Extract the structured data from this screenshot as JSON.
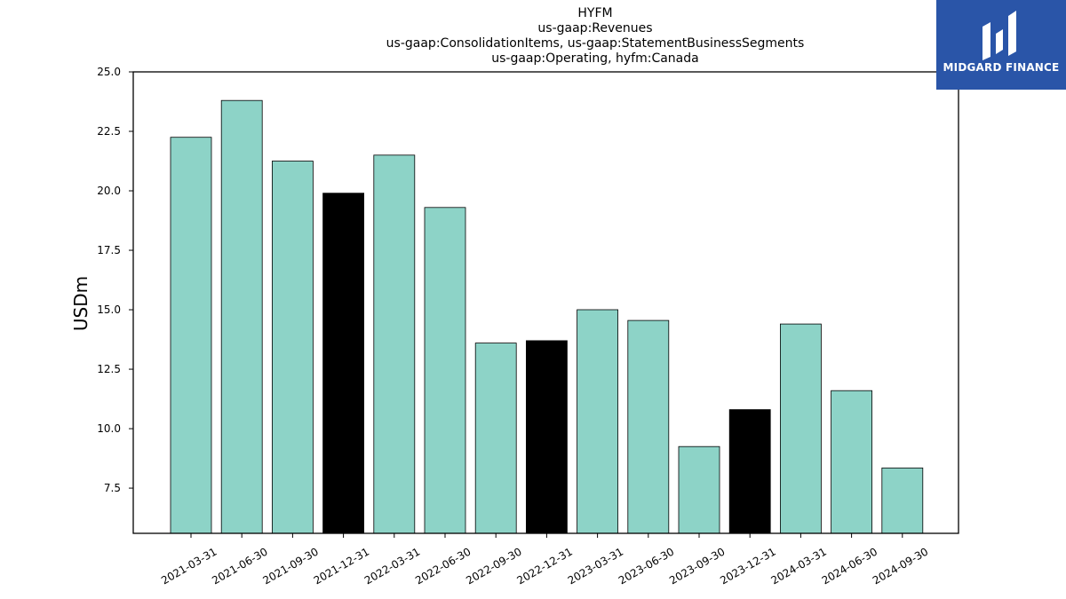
{
  "title": {
    "line1": "HYFM",
    "line2": "us-gaap:Revenues",
    "line3": "us-gaap:ConsolidationItems, us-gaap:StatementBusinessSegments",
    "line4": "us-gaap:Operating, hyfm:Canada"
  },
  "logo": {
    "text": "MIDGARD FINANCE",
    "icon": "midgard-logo-icon"
  },
  "colors": {
    "bar_default": "#8dd3c7",
    "bar_highlight": "#000000",
    "logo_bg": "#2a55a8"
  },
  "chart_data": {
    "type": "bar",
    "title": "HYFM\nus-gaap:Revenues\nus-gaap:ConsolidationItems, us-gaap:StatementBusinessSegments\nus-gaap:Operating, hyfm:Canada",
    "xlabel": "",
    "ylabel": "USDm",
    "ylim": [
      5.6,
      25.0
    ],
    "yticks": [
      "7.5",
      "10.0",
      "12.5",
      "15.0",
      "17.5",
      "20.0",
      "22.5",
      "25.0"
    ],
    "grid": false,
    "categories": [
      "2021-03-31",
      "2021-06-30",
      "2021-09-30",
      "2021-12-31",
      "2022-03-31",
      "2022-06-30",
      "2022-09-30",
      "2022-12-31",
      "2023-03-31",
      "2023-06-30",
      "2023-09-30",
      "2023-12-31",
      "2024-03-31",
      "2024-06-30",
      "2024-09-30"
    ],
    "values": [
      22.25,
      23.8,
      21.25,
      19.9,
      21.5,
      19.3,
      13.6,
      13.7,
      15.0,
      14.55,
      9.25,
      10.8,
      14.4,
      11.6,
      8.35
    ],
    "highlight": [
      false,
      false,
      false,
      true,
      false,
      false,
      false,
      true,
      false,
      false,
      false,
      true,
      false,
      false,
      false
    ]
  }
}
